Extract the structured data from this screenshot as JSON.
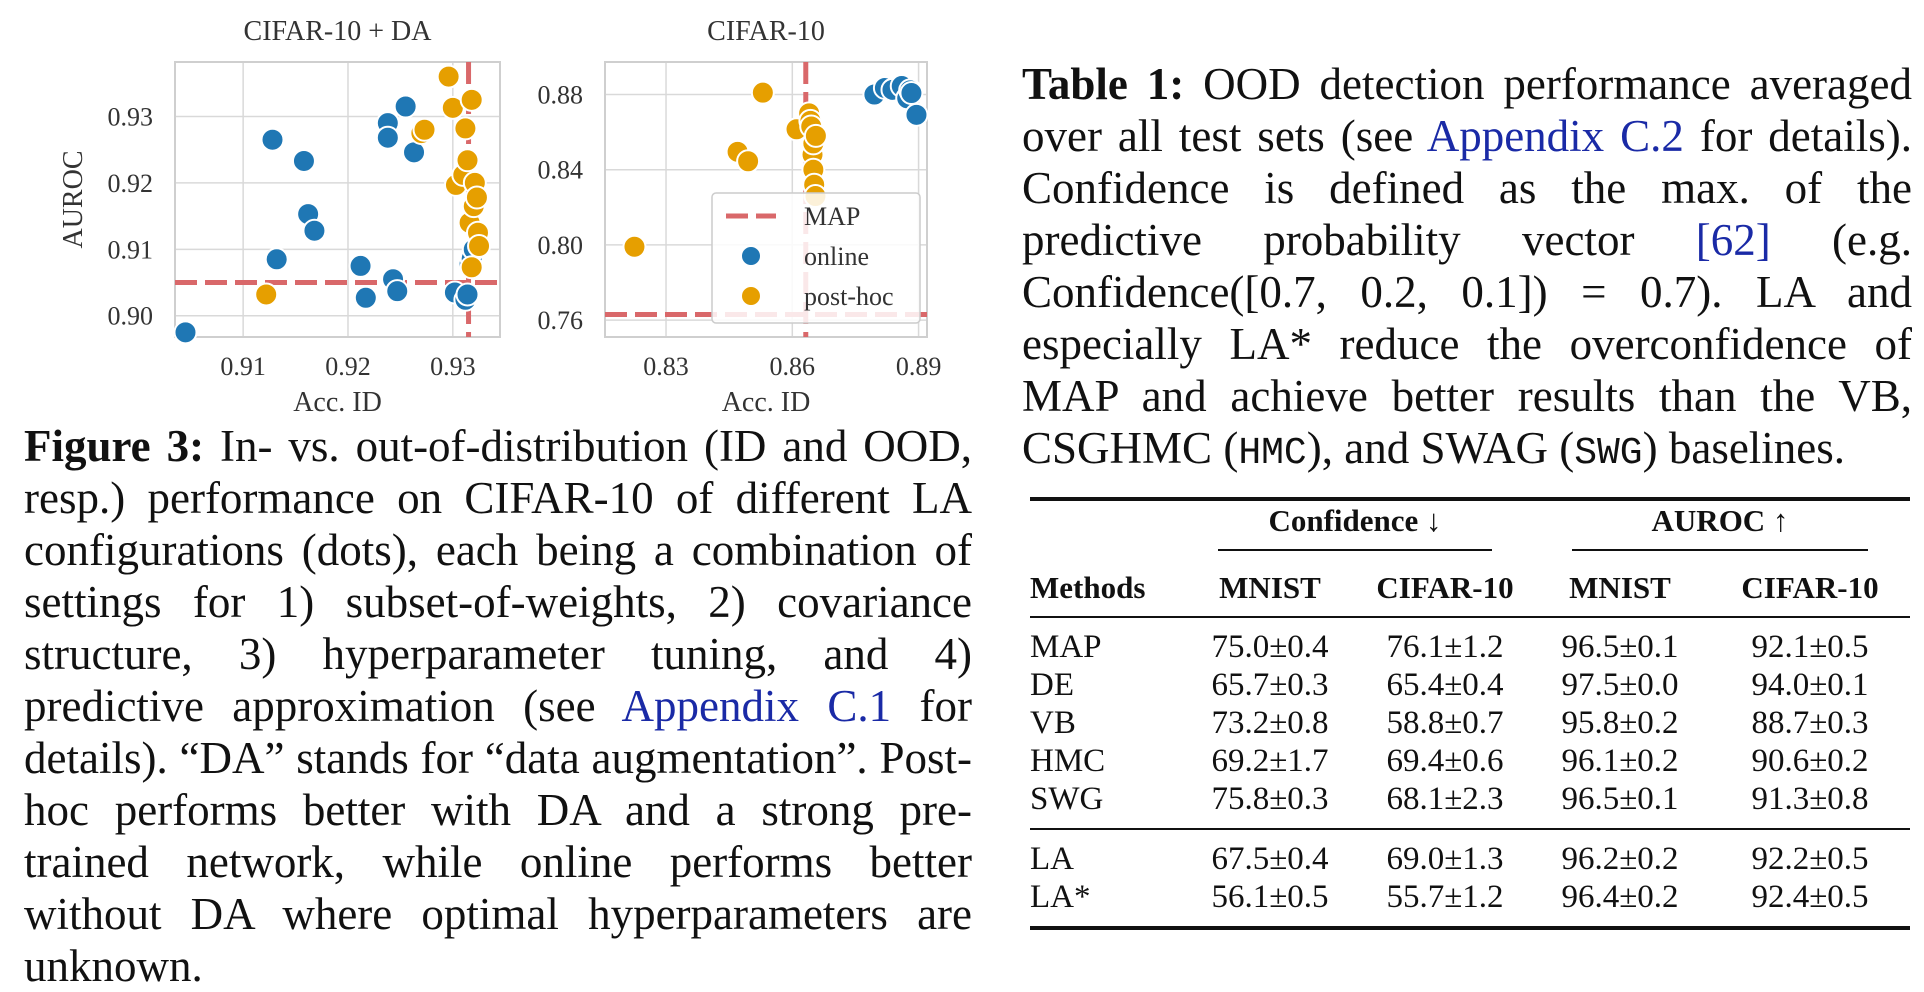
{
  "figure": {
    "caption_label": "Figure 3:",
    "caption_text_1": " In- vs. out-of-distribution (ID and OOD, resp.) performance on CIFAR-10 of different LA configurations (dots), each being a combination of settings for 1) subset-of-weights, 2) covariance structure, 3) hyperparameter tuning, and 4) predictive approximation (see ",
    "caption_link": "Appendix C.1",
    "caption_text_2": " for details). “DA” stands for “data augmentation”. Post-hoc performs better with DA and a strong pre-trained network, while online performs better without DA where optimal hyperparameters are unknown."
  },
  "chart_data": [
    {
      "type": "scatter",
      "title": "CIFAR-10 + DA",
      "xlabel": "Acc. ID",
      "ylabel": "AUROC",
      "xlim": [
        0.9035,
        0.9345
      ],
      "ylim": [
        0.8968,
        0.9382
      ],
      "xticks": [
        0.91,
        0.92,
        0.93
      ],
      "xtick_labels": [
        "0.91",
        "0.92",
        "0.93"
      ],
      "yticks": [
        0.9,
        0.91,
        0.92,
        0.93
      ],
      "ytick_labels": [
        "0.90",
        "0.91",
        "0.92",
        "0.93"
      ],
      "map_x": 0.9315,
      "map_y": 0.905,
      "series": [
        {
          "name": "online",
          "color": "#1f77b4",
          "points": [
            [
              0.9045,
              0.8975
            ],
            [
              0.9128,
              0.9265
            ],
            [
              0.9132,
              0.9085
            ],
            [
              0.9158,
              0.9233
            ],
            [
              0.9162,
              0.9153
            ],
            [
              0.9168,
              0.9128
            ],
            [
              0.9212,
              0.9075
            ],
            [
              0.9217,
              0.9027
            ],
            [
              0.9238,
              0.929
            ],
            [
              0.9238,
              0.9268
            ],
            [
              0.9243,
              0.9055
            ],
            [
              0.9247,
              0.9037
            ],
            [
              0.9255,
              0.9315
            ],
            [
              0.9263,
              0.9246
            ],
            [
              0.9302,
              0.9035
            ],
            [
              0.9312,
              0.9024
            ],
            [
              0.9314,
              0.9032
            ],
            [
              0.9316,
              0.9078
            ],
            [
              0.9318,
              0.9086
            ],
            [
              0.932,
              0.91
            ]
          ]
        },
        {
          "name": "post-hoc",
          "color": "#e69f00",
          "points": [
            [
              0.9122,
              0.9032
            ],
            [
              0.927,
              0.9275
            ],
            [
              0.9273,
              0.928
            ],
            [
              0.9296,
              0.936
            ],
            [
              0.93,
              0.9313
            ],
            [
              0.9303,
              0.9197
            ],
            [
              0.931,
              0.9212
            ],
            [
              0.9312,
              0.9282
            ],
            [
              0.9314,
              0.9234
            ],
            [
              0.9316,
              0.914
            ],
            [
              0.9318,
              0.9325
            ],
            [
              0.9318,
              0.9073
            ],
            [
              0.932,
              0.9165
            ],
            [
              0.9321,
              0.92
            ],
            [
              0.9323,
              0.9178
            ],
            [
              0.9324,
              0.9125
            ],
            [
              0.9325,
              0.9105
            ]
          ]
        }
      ]
    },
    {
      "type": "scatter",
      "title": "CIFAR-10",
      "xlabel": "Acc. ID",
      "ylabel": "",
      "xlim": [
        0.8155,
        0.892
      ],
      "ylim": [
        0.751,
        0.8973
      ],
      "xticks": [
        0.83,
        0.86,
        0.89
      ],
      "xtick_labels": [
        "0.83",
        "0.86",
        "0.89"
      ],
      "yticks": [
        0.76,
        0.8,
        0.84,
        0.88
      ],
      "ytick_labels": [
        "0.76",
        "0.80",
        "0.84",
        "0.88"
      ],
      "map_x": 0.8632,
      "map_y": 0.763,
      "legend": {
        "position": "right",
        "entries": [
          "MAP",
          "online",
          "post-hoc"
        ]
      },
      "series": [
        {
          "name": "online",
          "color": "#1f77b4",
          "points": [
            [
              0.8795,
              0.88
            ],
            [
              0.882,
              0.8835
            ],
            [
              0.8838,
              0.8825
            ],
            [
              0.886,
              0.8845
            ],
            [
              0.8873,
              0.878
            ],
            [
              0.888,
              0.8822
            ],
            [
              0.8883,
              0.8808
            ],
            [
              0.8895,
              0.8692
            ]
          ]
        },
        {
          "name": "post-hoc",
          "color": "#e69f00",
          "points": [
            [
              0.8225,
              0.799
            ],
            [
              0.847,
              0.8495
            ],
            [
              0.8495,
              0.8445
            ],
            [
              0.853,
              0.881
            ],
            [
              0.861,
              0.8615
            ],
            [
              0.864,
              0.87
            ],
            [
              0.8643,
              0.866
            ],
            [
              0.8645,
              0.863
            ],
            [
              0.8648,
              0.848
            ],
            [
              0.865,
              0.854
            ],
            [
              0.865,
              0.84
            ],
            [
              0.8652,
              0.832
            ],
            [
              0.8655,
              0.826
            ],
            [
              0.8656,
              0.858
            ]
          ]
        }
      ]
    }
  ],
  "table": {
    "caption_label": "Table 1:",
    "caption_text_1": " OOD detection performance averaged over all test sets (see ",
    "caption_link": "Appendix C.2",
    "caption_text_2": " for details). Confidence is defined as the max. of the predictive probability vector ",
    "caption_cite": "[62]",
    "caption_text_3": " (e.g. Confidence([0.7, 0.2, 0.1]) = 0.7). LA and especially LA* reduce the overconfidence of MAP and achieve better results than the VB, CSGHMC (",
    "caption_code_hmc": "HMC",
    "caption_text_4": "), and SWAG (",
    "caption_code_swg": "SWG",
    "caption_text_5": ") baselines.",
    "group_confidence": "Confidence ↓",
    "group_auroc": "AUROC ↑",
    "col_methods": "Methods",
    "col_mnist_1": "MNIST",
    "col_cifar_1": "CIFAR-10",
    "col_mnist_2": "MNIST",
    "col_cifar_2": "CIFAR-10",
    "rows_baselines": [
      [
        "MAP",
        "75.0±0.4",
        "76.1±1.2",
        "96.5±0.1",
        "92.1±0.5"
      ],
      [
        "DE",
        "65.7±0.3",
        "65.4±0.4",
        "97.5±0.0",
        "94.0±0.1"
      ],
      [
        "VB",
        "73.2±0.8",
        "58.8±0.7",
        "95.8±0.2",
        "88.7±0.3"
      ],
      [
        "HMC",
        "69.2±1.7",
        "69.4±0.6",
        "96.1±0.2",
        "90.6±0.2"
      ],
      [
        "SWG",
        "75.8±0.3",
        "68.1±2.3",
        "96.5±0.1",
        "91.3±0.8"
      ]
    ],
    "rows_la": [
      [
        "LA",
        "67.5±0.4",
        "69.0±1.3",
        "96.2±0.2",
        "92.2±0.5"
      ],
      [
        "LA*",
        "56.1±0.5",
        "55.7±1.2",
        "96.4±0.2",
        "92.4±0.5"
      ]
    ]
  }
}
